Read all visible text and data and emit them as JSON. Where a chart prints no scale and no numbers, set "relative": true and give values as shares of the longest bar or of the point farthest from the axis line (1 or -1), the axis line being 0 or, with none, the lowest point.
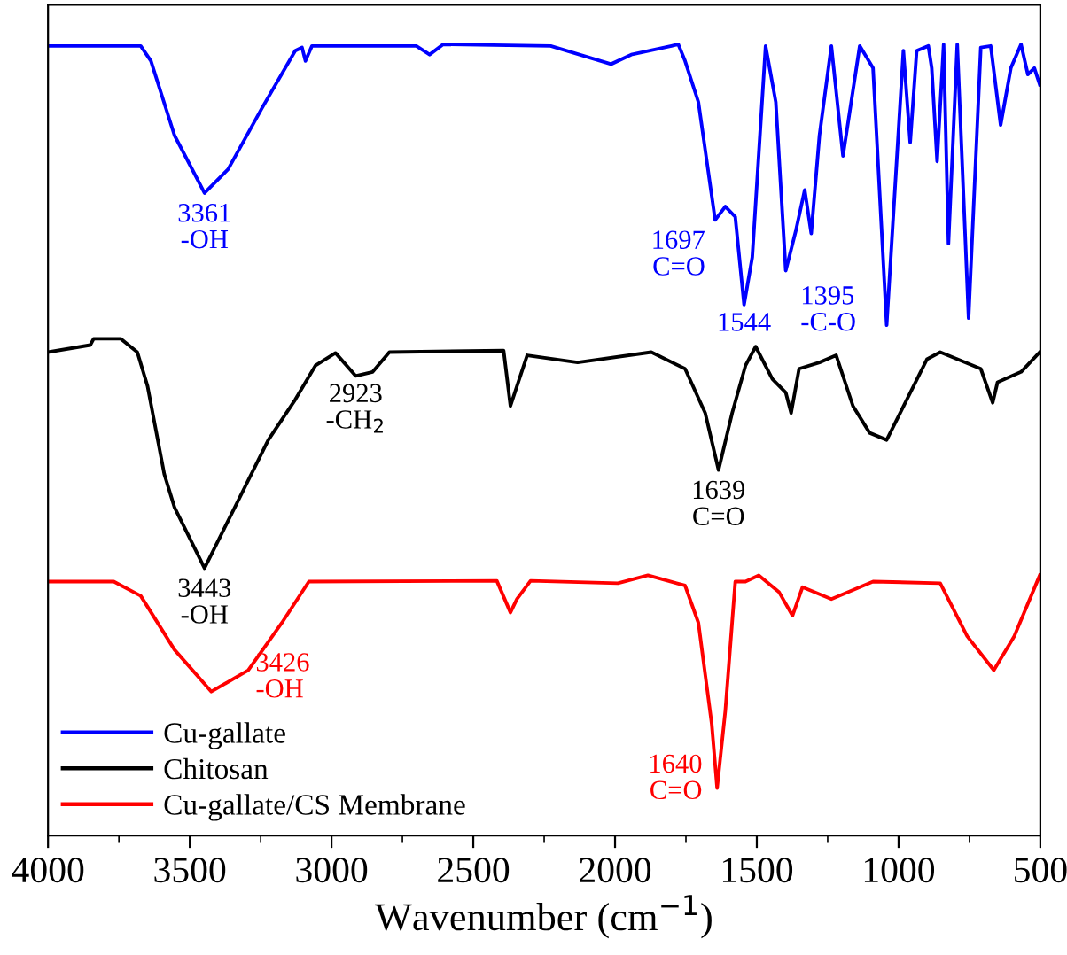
{
  "chart_data": {
    "type": "line",
    "relative": true,
    "xlabel": "Wavenumber (cm$^{−1}$)",
    "xlim": [
      4000,
      500
    ],
    "xticks": [
      4000,
      3500,
      3000,
      2500,
      2000,
      1500,
      1000,
      500
    ],
    "legend": "bottom left",
    "grid": false,
    "series": [
      {
        "name": "Cu-gallate",
        "color": "#0000ff",
        "x": [
          4000,
          3673,
          3637,
          3554,
          3448,
          3365,
          3246,
          3128,
          3104,
          3092,
          3069,
          2701,
          2654,
          2606,
          2227,
          2014,
          1943,
          1801,
          1777,
          1753,
          1706,
          1647,
          1611,
          1576,
          1545,
          1516,
          1469,
          1433,
          1398,
          1362,
          1331,
          1308,
          1279,
          1237,
          1196,
          1137,
          1090,
          1042,
          983,
          959,
          936,
          895,
          883,
          864,
          841,
          824,
          793,
          753,
          710,
          675,
          640,
          604,
          568,
          544,
          521,
          502
        ],
        "values": [
          0.998,
          0.998,
          0.979,
          0.885,
          0.812,
          0.842,
          0.919,
          0.992,
          0.996,
          0.979,
          0.998,
          0.998,
          0.987,
          1.0,
          0.998,
          0.975,
          0.987,
          0.998,
          1.0,
          0.979,
          0.927,
          0.778,
          0.795,
          0.782,
          0.671,
          0.731,
          0.998,
          0.927,
          0.714,
          0.765,
          0.816,
          0.761,
          0.885,
          0.998,
          0.859,
          0.998,
          0.97,
          0.645,
          0.992,
          0.876,
          0.992,
          0.998,
          0.97,
          0.852,
          1.0,
          0.748,
          1.0,
          0.654,
          0.996,
          0.998,
          0.898,
          0.97,
          1.0,
          0.962,
          0.97,
          0.949
        ]
      },
      {
        "name": "Chitosan",
        "color": "#000000",
        "x": [
          4000,
          3851,
          3839,
          3744,
          3685,
          3649,
          3590,
          3554,
          3448,
          3341,
          3223,
          3128,
          3057,
          2986,
          2915,
          2855,
          2796,
          2393,
          2369,
          2346,
          2310,
          2132,
          1872,
          1753,
          1682,
          1635,
          1587,
          1540,
          1504,
          1445,
          1398,
          1379,
          1351,
          1279,
          1220,
          1161,
          1102,
          1042,
          971,
          900,
          853,
          710,
          668,
          651,
          568,
          502
        ],
        "values": [
          0.611,
          0.62,
          0.628,
          0.628,
          0.611,
          0.568,
          0.457,
          0.415,
          0.338,
          0.415,
          0.5,
          0.551,
          0.594,
          0.61,
          0.581,
          0.586,
          0.611,
          0.613,
          0.543,
          0.568,
          0.607,
          0.598,
          0.611,
          0.59,
          0.534,
          0.462,
          0.534,
          0.594,
          0.618,
          0.577,
          0.56,
          0.534,
          0.59,
          0.598,
          0.607,
          0.543,
          0.509,
          0.5,
          0.551,
          0.602,
          0.611,
          0.59,
          0.547,
          0.573,
          0.586,
          0.611
        ]
      },
      {
        "name": "Cu-gallate/CS Membrane",
        "color": "#ff0000",
        "x": [
          4000,
          3768,
          3673,
          3554,
          3424,
          3294,
          3175,
          3080,
          2417,
          2369,
          2346,
          2298,
          1990,
          1884,
          1753,
          1706,
          1659,
          1640,
          1611,
          1576,
          1540,
          1493,
          1422,
          1374,
          1339,
          1237,
          1090,
          853,
          758,
          664,
          592,
          502
        ],
        "values": [
          0.321,
          0.321,
          0.303,
          0.235,
          0.182,
          0.209,
          0.269,
          0.321,
          0.322,
          0.282,
          0.299,
          0.322,
          0.319,
          0.329,
          0.316,
          0.269,
          0.141,
          0.06,
          0.158,
          0.321,
          0.321,
          0.329,
          0.308,
          0.278,
          0.314,
          0.299,
          0.321,
          0.319,
          0.252,
          0.209,
          0.252,
          0.329
        ]
      }
    ],
    "annotations": [
      {
        "text": "3361\n-OH",
        "x": 3448,
        "y": 0.812
      },
      {
        "text": "1697\nC=O",
        "x": 1647,
        "y": 0.778
      },
      {
        "text": "1544",
        "x": 1545,
        "y": 0.671
      },
      {
        "text": "1395\n-C-O",
        "x": 1398,
        "y": 0.714
      },
      {
        "text": "2923\n-CH$_{2}$",
        "x": 2915,
        "y": 0.581
      },
      {
        "text": "1639\nC=O",
        "x": 1635,
        "y": 0.462
      },
      {
        "text": "3443\n-OH",
        "x": 3448,
        "y": 0.338
      },
      {
        "text": "3426\n-OH",
        "x": 3424,
        "y": 0.182
      },
      {
        "text": "1640\nC=O",
        "x": 1640,
        "y": 0.06
      }
    ]
  }
}
